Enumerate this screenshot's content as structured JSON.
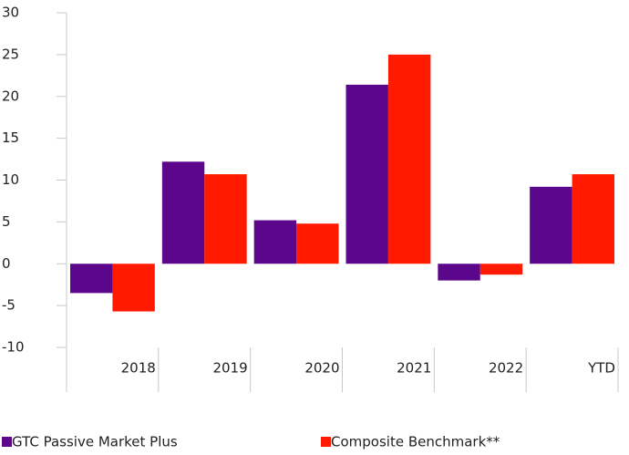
{
  "chart_data": {
    "type": "bar",
    "categories": [
      "2018",
      "2019",
      "2020",
      "2021",
      "2022",
      "YTD"
    ],
    "series": [
      {
        "name": "GTC Passive Market Plus",
        "color": "#5c068c",
        "values": [
          -3.5,
          12.2,
          5.2,
          21.4,
          -2.0,
          9.2
        ]
      },
      {
        "name": "Composite Benchmark**",
        "color": "#ff1a00",
        "values": [
          -5.7,
          10.7,
          4.8,
          25.0,
          -1.3,
          10.7
        ]
      }
    ],
    "ylim": [
      -10,
      30
    ],
    "yticks": [
      -10,
      -5,
      0,
      5,
      10,
      15,
      20,
      25,
      30
    ],
    "grid": false,
    "legend": "bottom"
  }
}
